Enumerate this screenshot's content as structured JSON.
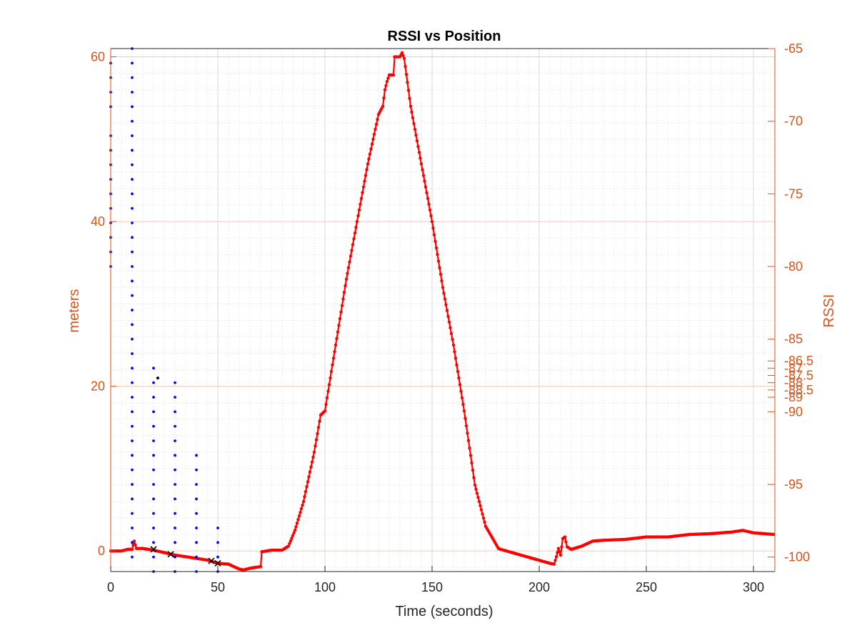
{
  "chart_data": {
    "type": "scatter",
    "title": "RSSI vs Position",
    "xlabel": "Time (seconds)",
    "ylabel_left": "meters",
    "ylabel_right": "RSSI",
    "xlim": [
      0,
      310
    ],
    "ylim_left": [
      -2.5,
      61
    ],
    "ylim_right": [
      -101,
      -65
    ],
    "x_ticks": [
      "0",
      "50",
      "100",
      "150",
      "200",
      "250",
      "300"
    ],
    "y_left_ticks": [
      "0",
      "20",
      "40",
      "60"
    ],
    "y_right_ticks": [
      "-65",
      "-70",
      "-75",
      "-80",
      "-85",
      "-86.5",
      "-87",
      "-87.5",
      "-88",
      "-88.5",
      "-89",
      "-90",
      "-95",
      "-100"
    ],
    "grid": true,
    "colors": {
      "axis_left": "#D95319",
      "axis_right": "#D95319",
      "position": "#FF0000",
      "rssi": "#0000FF",
      "markers": "#000000",
      "grid": "#D9D9D9",
      "grid_right": "#F3C9B8"
    },
    "series": [
      {
        "style": "red line with dot markers, left axis (meters)",
        "points": [
          [
            0,
            0
          ],
          [
            5,
            0
          ],
          [
            8,
            0.2
          ],
          [
            10,
            0.2
          ],
          [
            11,
            1.2
          ],
          [
            12,
            0.3
          ],
          [
            15,
            0.3
          ],
          [
            20,
            0.1
          ],
          [
            25,
            -0.2
          ],
          [
            30,
            -0.5
          ],
          [
            35,
            -0.7
          ],
          [
            40,
            -0.9
          ],
          [
            45,
            -1.1
          ],
          [
            50,
            -1.5
          ],
          [
            55,
            -1.6
          ],
          [
            60,
            -2.2
          ],
          [
            62,
            -2.3
          ],
          [
            65,
            -2.1
          ],
          [
            70,
            -1.9
          ],
          [
            70.5,
            -0.1
          ],
          [
            75,
            0.1
          ],
          [
            80,
            0.1
          ],
          [
            83,
            0.6
          ],
          [
            86,
            2.5
          ],
          [
            90,
            6
          ],
          [
            95,
            12
          ],
          [
            98,
            16.5
          ],
          [
            100,
            17
          ],
          [
            105,
            25
          ],
          [
            110,
            33
          ],
          [
            115,
            40
          ],
          [
            120,
            47
          ],
          [
            125,
            53
          ],
          [
            127,
            54
          ],
          [
            128,
            56
          ],
          [
            129,
            57
          ],
          [
            130,
            57.8
          ],
          [
            132,
            57.8
          ],
          [
            132.5,
            60
          ],
          [
            135,
            60
          ],
          [
            136,
            60.5
          ],
          [
            137,
            59.8
          ],
          [
            140,
            54
          ],
          [
            145,
            47
          ],
          [
            150,
            40
          ],
          [
            155,
            32
          ],
          [
            160,
            25
          ],
          [
            165,
            17
          ],
          [
            170,
            8
          ],
          [
            175,
            3
          ],
          [
            181,
            0.3
          ],
          [
            182,
            0.2
          ],
          [
            205,
            -1.5
          ],
          [
            207,
            -1.6
          ],
          [
            208,
            -0.7
          ],
          [
            209,
            0.3
          ],
          [
            210,
            -0.5
          ],
          [
            211,
            1.5
          ],
          [
            212,
            1.7
          ],
          [
            213,
            0.5
          ],
          [
            215,
            0.2
          ],
          [
            220,
            0.6
          ],
          [
            225,
            1.2
          ],
          [
            230,
            1.3
          ],
          [
            240,
            1.4
          ],
          [
            250,
            1.7
          ],
          [
            260,
            1.7
          ],
          [
            270,
            2
          ],
          [
            280,
            2.1
          ],
          [
            290,
            2.3
          ],
          [
            295,
            2.5
          ],
          [
            300,
            2.2
          ],
          [
            310,
            2
          ]
        ]
      },
      {
        "style": "blue dots, right axis (RSSI)",
        "points": [
          [
            0,
            -66
          ],
          [
            0,
            -67
          ],
          [
            0,
            -68
          ],
          [
            0,
            -69
          ],
          [
            0,
            -71
          ],
          [
            0,
            -72
          ],
          [
            0,
            -73
          ],
          [
            0,
            -74
          ],
          [
            0,
            -75
          ],
          [
            0,
            -76
          ],
          [
            0,
            -77
          ],
          [
            0,
            -78
          ],
          [
            0,
            -79
          ],
          [
            0,
            -80
          ],
          [
            10,
            -65
          ],
          [
            10,
            -66
          ],
          [
            10,
            -67
          ],
          [
            10,
            -68
          ],
          [
            10,
            -69
          ],
          [
            10,
            -70
          ],
          [
            10,
            -71
          ],
          [
            10,
            -72
          ],
          [
            10,
            -73
          ],
          [
            10,
            -74
          ],
          [
            10,
            -75
          ],
          [
            10,
            -76
          ],
          [
            10,
            -77
          ],
          [
            10,
            -78
          ],
          [
            10,
            -79
          ],
          [
            10,
            -80
          ],
          [
            10,
            -81
          ],
          [
            10,
            -82
          ],
          [
            10,
            -83
          ],
          [
            10,
            -84
          ],
          [
            10,
            -85
          ],
          [
            10,
            -86
          ],
          [
            10,
            -87
          ],
          [
            10,
            -88
          ],
          [
            10,
            -89
          ],
          [
            10,
            -90
          ],
          [
            10,
            -91
          ],
          [
            10,
            -92
          ],
          [
            10,
            -93
          ],
          [
            10,
            -94
          ],
          [
            10,
            -95
          ],
          [
            10,
            -96
          ],
          [
            10,
            -97
          ],
          [
            10,
            -98
          ],
          [
            10,
            -99
          ],
          [
            10,
            -100
          ],
          [
            20,
            -87
          ],
          [
            20,
            -88
          ],
          [
            20,
            -89
          ],
          [
            20,
            -90
          ],
          [
            20,
            -91
          ],
          [
            20,
            -92
          ],
          [
            20,
            -93
          ],
          [
            20,
            -94
          ],
          [
            20,
            -95
          ],
          [
            20,
            -96
          ],
          [
            20,
            -97
          ],
          [
            20,
            -98
          ],
          [
            20,
            -99
          ],
          [
            20,
            -100
          ],
          [
            20,
            -101
          ],
          [
            30,
            -88
          ],
          [
            30,
            -89
          ],
          [
            30,
            -90
          ],
          [
            30,
            -91
          ],
          [
            30,
            -92
          ],
          [
            30,
            -93
          ],
          [
            30,
            -94
          ],
          [
            30,
            -95
          ],
          [
            30,
            -96
          ],
          [
            30,
            -97
          ],
          [
            30,
            -98
          ],
          [
            30,
            -99
          ],
          [
            30,
            -100
          ],
          [
            30,
            -101
          ],
          [
            40,
            -93
          ],
          [
            40,
            -94
          ],
          [
            40,
            -95
          ],
          [
            40,
            -96
          ],
          [
            40,
            -97
          ],
          [
            40,
            -98
          ],
          [
            40,
            -99
          ],
          [
            40,
            -100
          ],
          [
            40,
            -101
          ],
          [
            50,
            -98
          ],
          [
            50,
            -99
          ],
          [
            50,
            -100
          ],
          [
            50,
            -101
          ]
        ]
      },
      {
        "style": "black x markers, left axis",
        "points": [
          [
            20,
            0.2
          ],
          [
            28,
            -0.4
          ],
          [
            47,
            -1.2
          ],
          [
            50,
            -1.5
          ]
        ]
      },
      {
        "style": "black dot, left axis",
        "points": [
          [
            22,
            21
          ]
        ]
      }
    ]
  }
}
